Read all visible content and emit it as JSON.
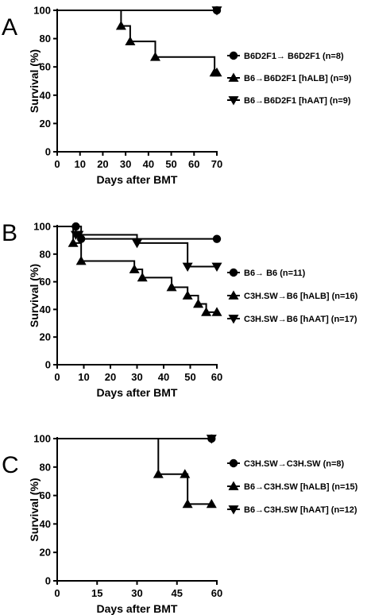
{
  "chart_data": [
    {
      "panel": "A",
      "type": "line",
      "step": true,
      "xlabel": "Days after BMT",
      "ylabel": "Survival (%)",
      "xlim": [
        0,
        70
      ],
      "ylim": [
        0,
        100
      ],
      "xticks": [
        0,
        10,
        20,
        30,
        40,
        50,
        60,
        70
      ],
      "yticks": [
        0,
        20,
        40,
        60,
        80,
        100
      ],
      "legend_position": "right",
      "series": [
        {
          "name": "B6D2F1→ B6D2F1 (n=8)",
          "marker": "circle",
          "x": [
            0,
            70
          ],
          "y": [
            100,
            100
          ]
        },
        {
          "name": "B6→B6D2F1 [hALB] (n=9)",
          "marker": "triangle-up",
          "x": [
            0,
            28,
            32,
            43,
            69,
            70
          ],
          "y": [
            100,
            89,
            78,
            67,
            56,
            56
          ]
        },
        {
          "name": "B6→B6D2F1 [hAAT] (n=9)",
          "marker": "triangle-down",
          "x": [
            0,
            70
          ],
          "y": [
            100,
            100
          ]
        }
      ]
    },
    {
      "panel": "B",
      "type": "line",
      "step": true,
      "xlabel": "Days after BMT",
      "ylabel": "Survival (%)",
      "xlim": [
        0,
        60
      ],
      "ylim": [
        0,
        100
      ],
      "xticks": [
        0,
        10,
        20,
        30,
        40,
        50,
        60
      ],
      "yticks": [
        0,
        20,
        40,
        60,
        80,
        100
      ],
      "legend_position": "right",
      "series": [
        {
          "name": "B6→ B6 (n=11)",
          "marker": "circle",
          "x": [
            0,
            7,
            9,
            60
          ],
          "y": [
            100,
            100,
            91,
            91
          ]
        },
        {
          "name": "C3H.SW→B6 [hALB] (n=16)",
          "marker": "triangle-up",
          "x": [
            0,
            6,
            9,
            29,
            32,
            43,
            49,
            53,
            56,
            60
          ],
          "y": [
            100,
            88,
            75,
            69,
            63,
            56,
            50,
            44,
            38,
            38
          ]
        },
        {
          "name": "C3H.SW→B6 [hAAT] (n=17)",
          "marker": "triangle-down",
          "x": [
            0,
            7,
            8,
            30,
            49,
            60
          ],
          "y": [
            100,
            94,
            94,
            88,
            71,
            71
          ]
        }
      ]
    },
    {
      "panel": "C",
      "type": "line",
      "step": true,
      "xlabel": "Days after BMT",
      "ylabel": "Survival (%)",
      "xlim": [
        0,
        60
      ],
      "ylim": [
        0,
        100
      ],
      "xticks": [
        0,
        15,
        30,
        45,
        60
      ],
      "yticks": [
        0,
        20,
        40,
        60,
        80,
        100
      ],
      "legend_position": "right",
      "series": [
        {
          "name": "C3H.SW→C3H.SW (n=8)",
          "marker": "circle",
          "x": [
            0,
            58
          ],
          "y": [
            100,
            100
          ]
        },
        {
          "name": "B6→C3H.SW [hALB] (n=15)",
          "marker": "triangle-up",
          "x": [
            0,
            38,
            48,
            49,
            58
          ],
          "y": [
            100,
            75,
            75,
            54,
            54
          ]
        },
        {
          "name": "B6→C3H.SW [hAAT] (n=12)",
          "marker": "triangle-down",
          "x": [
            0,
            58
          ],
          "y": [
            100,
            100
          ]
        }
      ]
    }
  ]
}
